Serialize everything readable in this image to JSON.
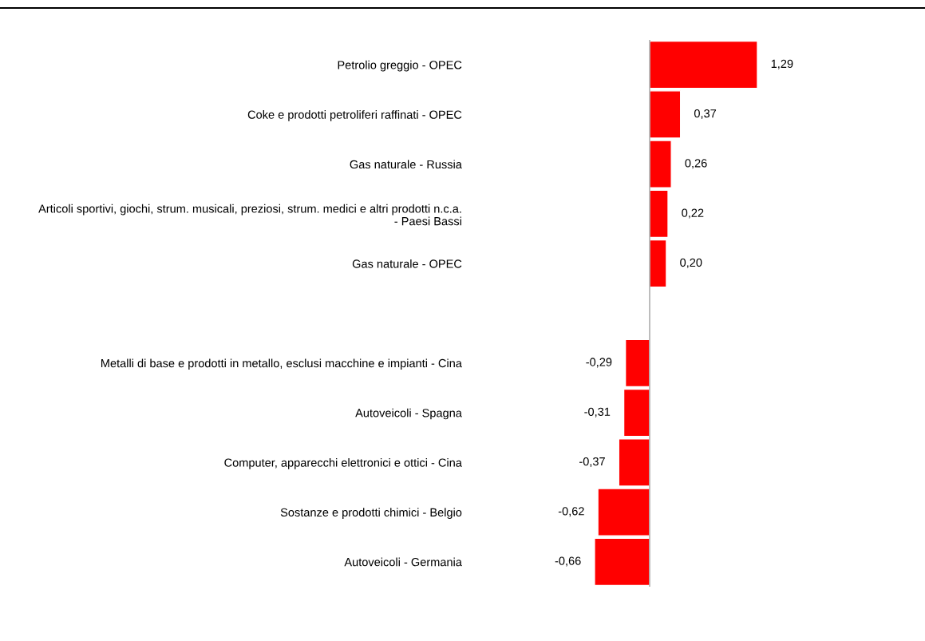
{
  "chart_data": {
    "type": "bar",
    "orientation": "horizontal",
    "categories": [
      "Petrolio greggio - OPEC",
      "Coke e prodotti petroliferi raffinati - OPEC",
      "Gas naturale - Russia",
      "Articoli sportivi, giochi, strum. musicali, preziosi, strum. medici e altri prodotti n.c.a.\n- Paesi Bassi",
      "Gas naturale - OPEC",
      null,
      "Metalli di base e prodotti in metallo, esclusi macchine e impianti - Cina",
      "Autoveicoli - Spagna",
      "Computer, apparecchi elettronici e ottici - Cina",
      "Sostanze e prodotti chimici - Belgio",
      "Autoveicoli - Germania"
    ],
    "values": [
      1.29,
      0.37,
      0.26,
      0.22,
      0.2,
      null,
      -0.29,
      -0.31,
      -0.37,
      -0.62,
      -0.66
    ],
    "value_labels": [
      "1,29",
      "0,37",
      "0,26",
      "0,22",
      "0,20",
      null,
      "-0,29",
      "-0,31",
      "-0,37",
      "-0,62",
      "-0,66"
    ],
    "color": "#ff0000",
    "tick_labels": "y",
    "grid": false,
    "legend": false,
    "ref_lines": [
      {
        "axis": "x",
        "value": 0,
        "color": "#a0a0a0"
      }
    ]
  }
}
